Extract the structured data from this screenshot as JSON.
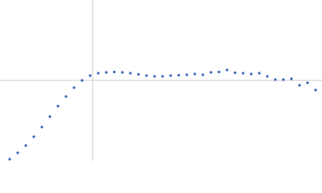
{
  "chart_data": {
    "type": "scatter",
    "color": "#3a66b8",
    "ref_color": "#cccccc",
    "xlim": [
      0,
      6.02
    ],
    "ylim": [
      0,
      2.208
    ],
    "reference_lines": {
      "x": 1.732,
      "y": 1.104
    },
    "series": [
      {
        "color": "#3a66b8",
        "x": [
          0.181,
          0.331,
          0.482,
          0.632,
          0.783,
          0.933,
          1.084,
          1.234,
          1.385,
          1.535,
          1.686,
          1.836,
          1.987,
          2.137,
          2.288,
          2.438,
          2.589,
          2.739,
          2.89,
          3.04,
          3.191,
          3.341,
          3.492,
          3.642,
          3.793,
          3.943,
          4.094,
          4.244,
          4.395,
          4.545,
          4.696,
          4.846,
          4.997,
          5.147,
          5.298,
          5.448,
          5.599,
          5.749,
          5.9
        ],
        "values": [
          0.022,
          0.11,
          0.21,
          0.331,
          0.464,
          0.607,
          0.751,
          0.883,
          1.005,
          1.104,
          1.17,
          1.203,
          1.214,
          1.22,
          1.214,
          1.203,
          1.187,
          1.17,
          1.159,
          1.159,
          1.17,
          1.176,
          1.181,
          1.192,
          1.181,
          1.214,
          1.22,
          1.248,
          1.209,
          1.203,
          1.192,
          1.203,
          1.159,
          1.115,
          1.115,
          1.126,
          1.038,
          1.071,
          0.972
        ]
      }
    ]
  }
}
